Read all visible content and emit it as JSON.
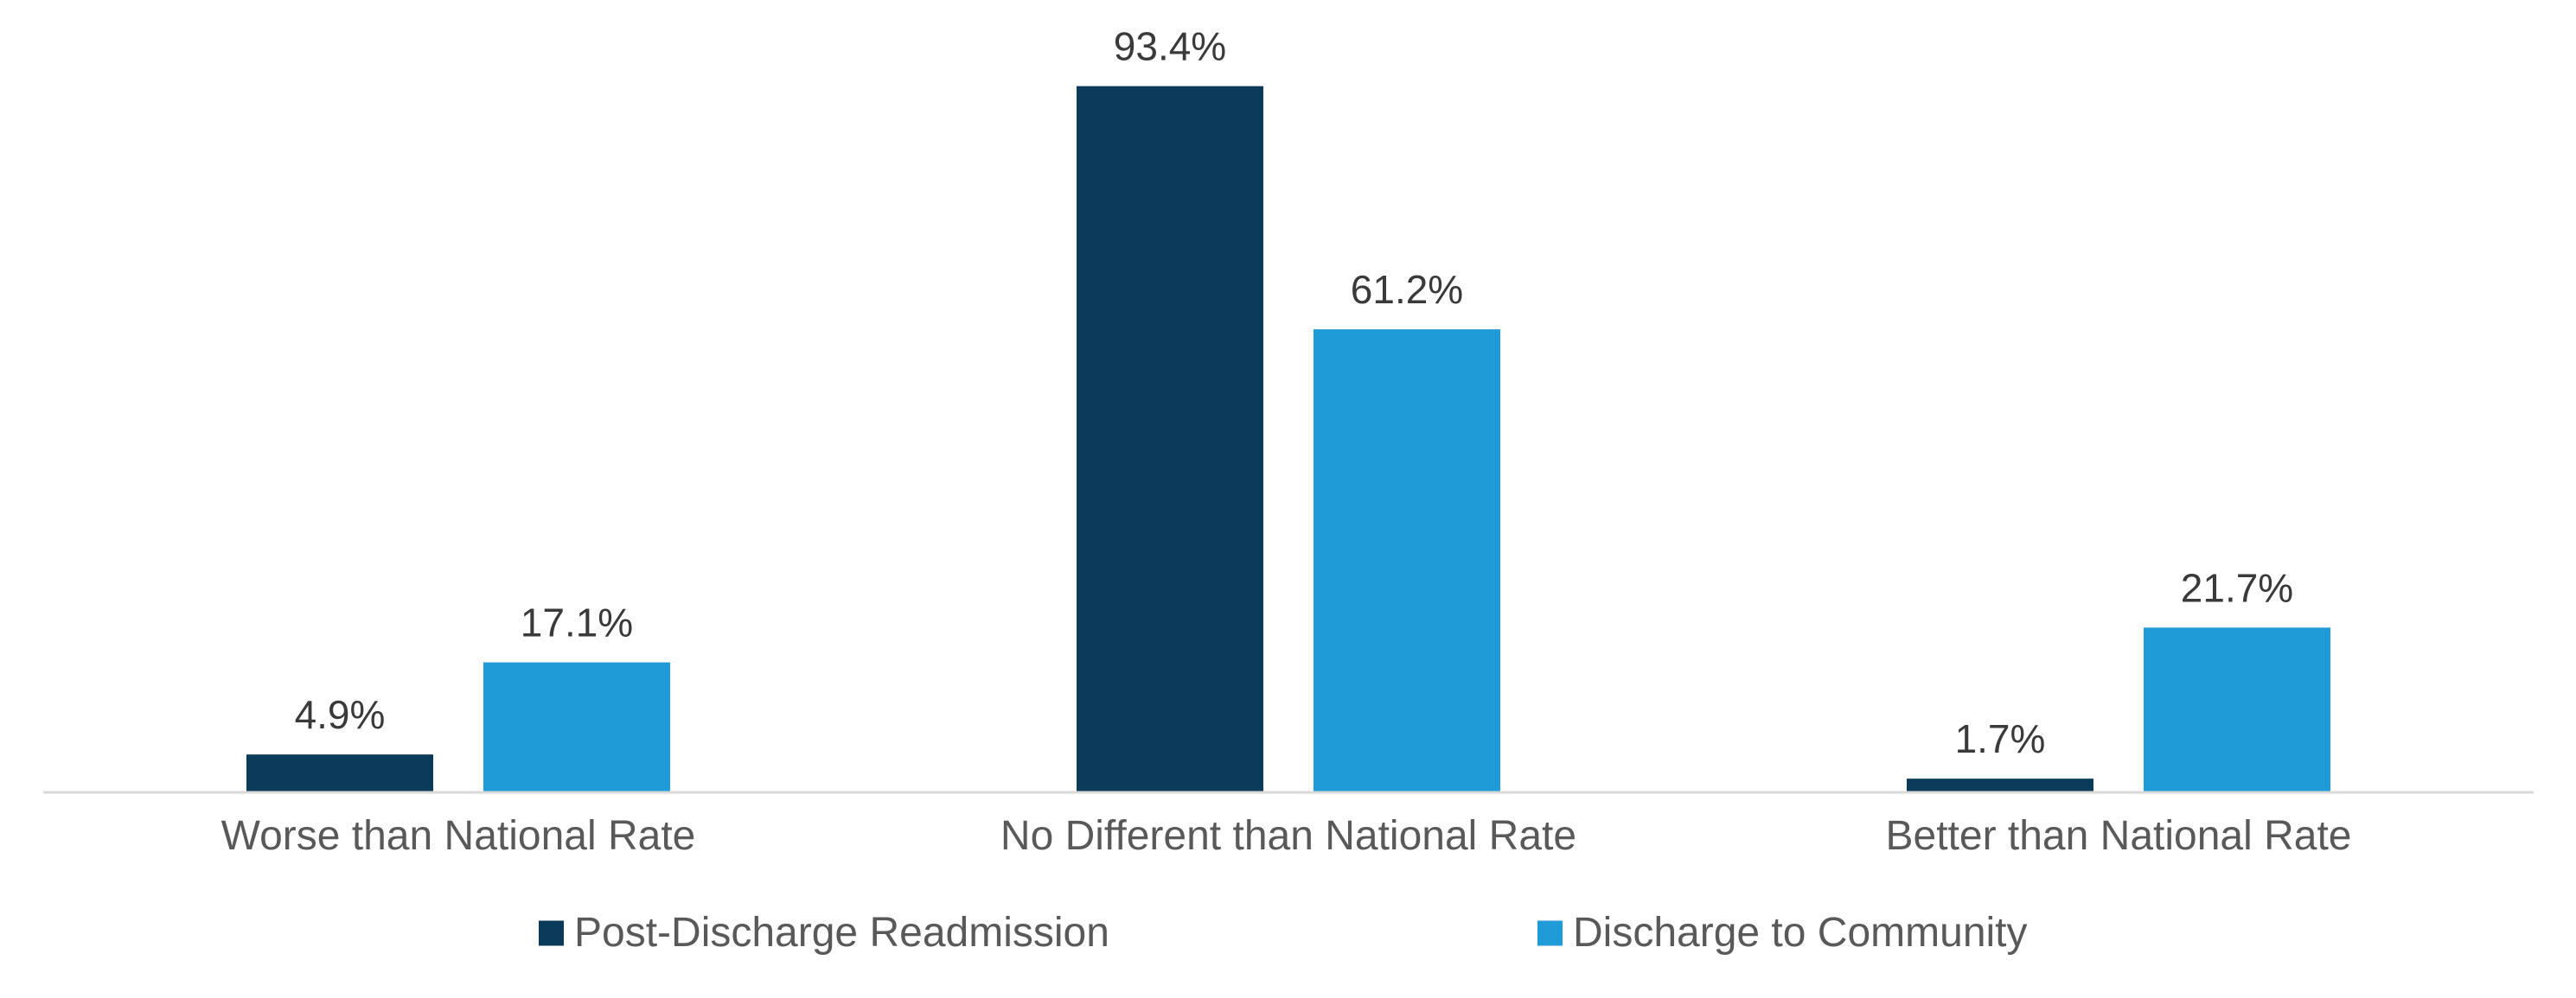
{
  "chart_data": {
    "type": "bar",
    "title": "",
    "xlabel": "",
    "ylabel": "",
    "ylim": [
      0,
      100
    ],
    "grid": false,
    "legend_position": "bottom",
    "categories": [
      "Worse than National Rate",
      "No Different than National Rate",
      "Better than National Rate"
    ],
    "series": [
      {
        "name": "Post-Discharge Readmission",
        "color": "#0b3a5b",
        "values": [
          4.9,
          93.4,
          1.7
        ],
        "labels": [
          "4.9%",
          "93.4%",
          "1.7%"
        ]
      },
      {
        "name": "Discharge to Community",
        "color": "#1f9bd7",
        "values": [
          17.1,
          61.2,
          21.7
        ],
        "labels": [
          "17.1%",
          "61.2%",
          "21.7%"
        ]
      }
    ],
    "axis_color": "#d9d9d9"
  }
}
